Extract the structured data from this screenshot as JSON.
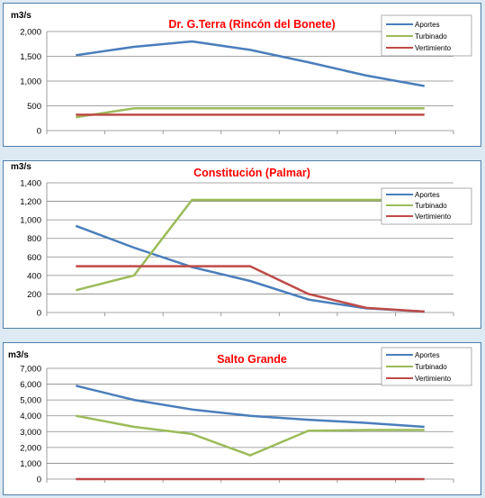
{
  "charts": [
    {
      "unit_label": "m3/s",
      "title": "Dr. G.Terra (Rincón del Bonete)",
      "legend": [
        "Aportes",
        "Turbinado",
        "Vertimiento"
      ]
    },
    {
      "unit_label": "m3/s",
      "title": "Constitución (Palmar)",
      "legend": [
        "Aportes",
        "Turbinado",
        "Vertimiento"
      ]
    },
    {
      "unit_label": "m3/s",
      "title": "Salto Grande",
      "legend": [
        "Aportes",
        "Turbinado",
        "Vertimiento"
      ]
    }
  ],
  "colors": {
    "aportes": "#4a7ebb",
    "turbinado": "#9bbb59",
    "vertimiento": "#be4b48",
    "grid": "#878787"
  },
  "chart_data": [
    {
      "type": "line",
      "title": "Dr. G.Terra (Rincón del Bonete)",
      "ylabel": "m3/s",
      "ylim": [
        0,
        2000
      ],
      "yticks": [
        0,
        500,
        1000,
        1500,
        2000
      ],
      "ytick_labels": [
        "0",
        "500",
        "1,000",
        "1,500",
        "2,000"
      ],
      "x": [
        1,
        2,
        3,
        4,
        5,
        6,
        7
      ],
      "grid": true,
      "legend_position": "top-right",
      "series": [
        {
          "name": "Aportes",
          "color": "#4a7ebb",
          "values": [
            1520,
            1690,
            1800,
            1630,
            1380,
            1110,
            900
          ]
        },
        {
          "name": "Turbinado",
          "color": "#9bbb59",
          "values": [
            270,
            450,
            450,
            450,
            450,
            450,
            450
          ]
        },
        {
          "name": "Vertimiento",
          "color": "#be4b48",
          "values": [
            320,
            320,
            320,
            320,
            320,
            320,
            320
          ]
        }
      ]
    },
    {
      "type": "line",
      "title": "Constitución (Palmar)",
      "ylabel": "m3/s",
      "ylim": [
        0,
        1400
      ],
      "yticks": [
        0,
        200,
        400,
        600,
        800,
        1000,
        1200,
        1400
      ],
      "ytick_labels": [
        "0",
        "200",
        "400",
        "600",
        "800",
        "1,000",
        "1,200",
        "1,400"
      ],
      "x": [
        1,
        2,
        3,
        4,
        5,
        6,
        7
      ],
      "grid": true,
      "legend_position": "top-right",
      "series": [
        {
          "name": "Aportes",
          "color": "#4a7ebb",
          "values": [
            935,
            700,
            490,
            340,
            140,
            45,
            10
          ]
        },
        {
          "name": "Turbinado",
          "color": "#9bbb59",
          "values": [
            240,
            400,
            1215,
            1215,
            1215,
            1215,
            1215
          ]
        },
        {
          "name": "Vertimiento",
          "color": "#be4b48",
          "values": [
            500,
            500,
            500,
            500,
            200,
            50,
            10
          ]
        }
      ]
    },
    {
      "type": "line",
      "title": "Salto Grande",
      "ylabel": "m3/s",
      "ylim": [
        0,
        7000
      ],
      "yticks": [
        0,
        1000,
        2000,
        3000,
        4000,
        5000,
        6000,
        7000
      ],
      "ytick_labels": [
        "0",
        "1,000",
        "2,000",
        "3,000",
        "4,000",
        "5,000",
        "6,000",
        "7,000"
      ],
      "x": [
        1,
        2,
        3,
        4,
        5,
        6,
        7
      ],
      "grid": true,
      "legend_position": "top-right",
      "series": [
        {
          "name": "Aportes",
          "color": "#4a7ebb",
          "values": [
            5900,
            5000,
            4400,
            4000,
            3750,
            3550,
            3300
          ]
        },
        {
          "name": "Turbinado",
          "color": "#9bbb59",
          "values": [
            4000,
            3300,
            2850,
            1500,
            3050,
            3100,
            3100
          ]
        },
        {
          "name": "Vertimiento",
          "color": "#be4b48",
          "values": [
            0,
            0,
            0,
            0,
            0,
            0,
            0
          ]
        }
      ]
    }
  ]
}
